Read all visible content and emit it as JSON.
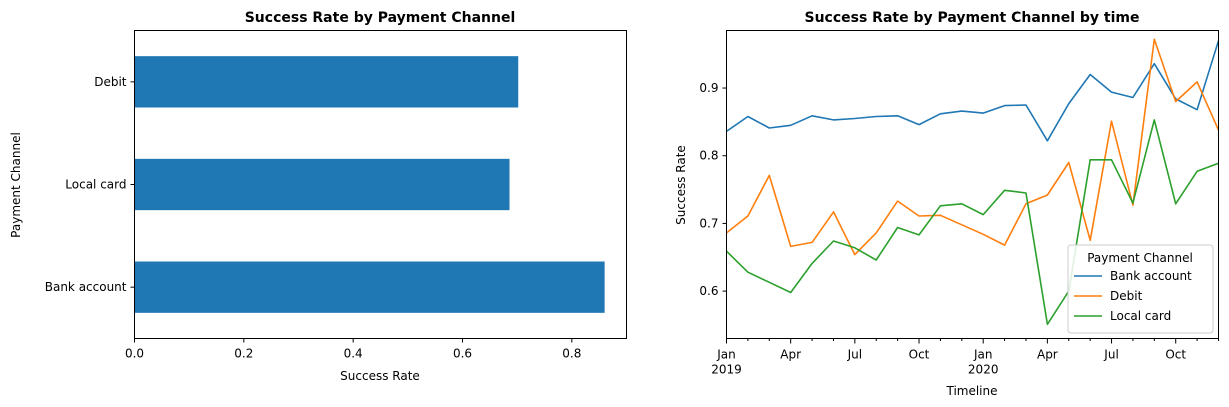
{
  "chart_data": [
    {
      "type": "bar",
      "orientation": "horizontal",
      "title": "Success Rate by Payment Channel",
      "xlabel": "Success Rate",
      "ylabel": "Payment Channel",
      "categories": [
        "Bank account",
        "Local card",
        "Debit"
      ],
      "values": [
        0.86,
        0.686,
        0.702
      ],
      "xlim": [
        0,
        0.9
      ],
      "xticks": [
        "0.0",
        "0.2",
        "0.4",
        "0.6",
        "0.8"
      ],
      "color": "#1f77b4",
      "grid": false
    },
    {
      "type": "line",
      "title": "Success Rate by Payment Channel by time",
      "xlabel": "Timeline",
      "ylabel": "Success Rate",
      "x": [
        "2019-01",
        "2019-02",
        "2019-03",
        "2019-04",
        "2019-05",
        "2019-06",
        "2019-07",
        "2019-08",
        "2019-09",
        "2019-10",
        "2019-11",
        "2019-12",
        "2020-01",
        "2020-02",
        "2020-03",
        "2020-04",
        "2020-05",
        "2020-06",
        "2020-07",
        "2020-08",
        "2020-09",
        "2020-10",
        "2020-11",
        "2020-12"
      ],
      "ylim": [
        0.53,
        0.985
      ],
      "yticks": [
        "0.6",
        "0.7",
        "0.8",
        "0.9"
      ],
      "xtick_labels": [
        {
          "label": "Jan",
          "sub": "2019"
        },
        {
          "label": "Apr",
          "sub": ""
        },
        {
          "label": "Jul",
          "sub": ""
        },
        {
          "label": "Oct",
          "sub": ""
        },
        {
          "label": "Jan",
          "sub": "2020"
        },
        {
          "label": "Apr",
          "sub": ""
        },
        {
          "label": "Jul",
          "sub": ""
        },
        {
          "label": "Oct",
          "sub": ""
        }
      ],
      "legend": {
        "title": "Payment Channel",
        "placement": "lower-right"
      },
      "grid": false,
      "series": [
        {
          "name": "Bank account",
          "color": "#1f77b4",
          "values": [
            0.836,
            0.858,
            0.841,
            0.845,
            0.859,
            0.853,
            0.855,
            0.858,
            0.859,
            0.846,
            0.862,
            0.866,
            0.863,
            0.874,
            0.875,
            0.822,
            0.877,
            0.92,
            0.894,
            0.886,
            0.936,
            0.884,
            0.868,
            0.97
          ]
        },
        {
          "name": "Debit",
          "color": "#ff7f0e",
          "values": [
            0.686,
            0.711,
            0.771,
            0.666,
            0.672,
            0.717,
            0.654,
            0.686,
            0.733,
            0.711,
            0.712,
            0.698,
            0.684,
            0.668,
            0.729,
            0.742,
            0.79,
            0.675,
            0.851,
            0.727,
            0.972,
            0.88,
            0.909,
            0.838
          ]
        },
        {
          "name": "Local card",
          "color": "#2ca02c",
          "values": [
            0.659,
            0.628,
            0.613,
            0.598,
            0.641,
            0.674,
            0.664,
            0.646,
            0.694,
            0.683,
            0.726,
            0.729,
            0.713,
            0.749,
            0.745,
            0.551,
            0.6,
            0.794,
            0.794,
            0.73,
            0.853,
            0.729,
            0.777,
            0.789
          ]
        }
      ]
    }
  ]
}
